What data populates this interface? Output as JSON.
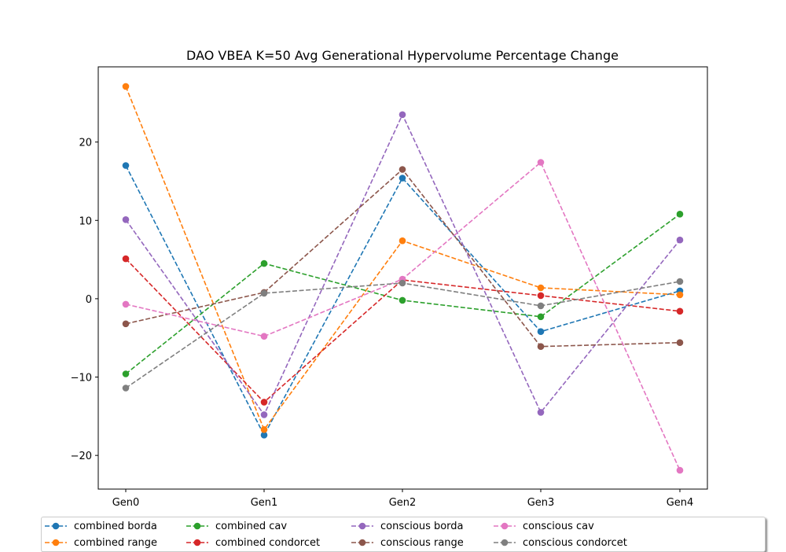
{
  "chart_data": {
    "type": "line",
    "title": "DAO VBEA K=50 Avg Generational Hypervolume Percentage Change",
    "xlabel": "",
    "ylabel": "",
    "categories": [
      "Gen0",
      "Gen1",
      "Gen2",
      "Gen3",
      "Gen4"
    ],
    "ylim": [
      -24.3,
      29.6
    ],
    "yticks": [
      -20,
      -10,
      0,
      10,
      20
    ],
    "ytick_labels": [
      "−20",
      "−10",
      "0",
      "10",
      "20"
    ],
    "grid": false,
    "line_style": "dashed",
    "marker": "circle",
    "legend_position": "bottom-center",
    "series": [
      {
        "name": "combined borda",
        "color": "#1f77b4",
        "values": [
          17.0,
          -17.4,
          15.4,
          -4.2,
          1.0
        ]
      },
      {
        "name": "combined range",
        "color": "#ff7f0e",
        "values": [
          27.1,
          -16.7,
          7.4,
          1.4,
          0.5
        ]
      },
      {
        "name": "combined cav",
        "color": "#2ca02c",
        "values": [
          -9.6,
          4.5,
          -0.2,
          -2.3,
          10.8
        ]
      },
      {
        "name": "combined condorcet",
        "color": "#d62728",
        "values": [
          5.1,
          -13.2,
          2.4,
          0.4,
          -1.6
        ]
      },
      {
        "name": "conscious borda",
        "color": "#9467bd",
        "values": [
          10.1,
          -14.8,
          23.5,
          -14.5,
          7.5
        ]
      },
      {
        "name": "conscious range",
        "color": "#8c564b",
        "values": [
          -3.2,
          0.8,
          16.5,
          -6.1,
          -5.6
        ]
      },
      {
        "name": "conscious cav",
        "color": "#e377c2",
        "values": [
          -0.7,
          -4.8,
          2.5,
          17.4,
          -21.9
        ]
      },
      {
        "name": "conscious condorcet",
        "color": "#7f7f7f",
        "values": [
          -11.4,
          0.7,
          2.0,
          -0.9,
          2.2
        ]
      }
    ]
  }
}
